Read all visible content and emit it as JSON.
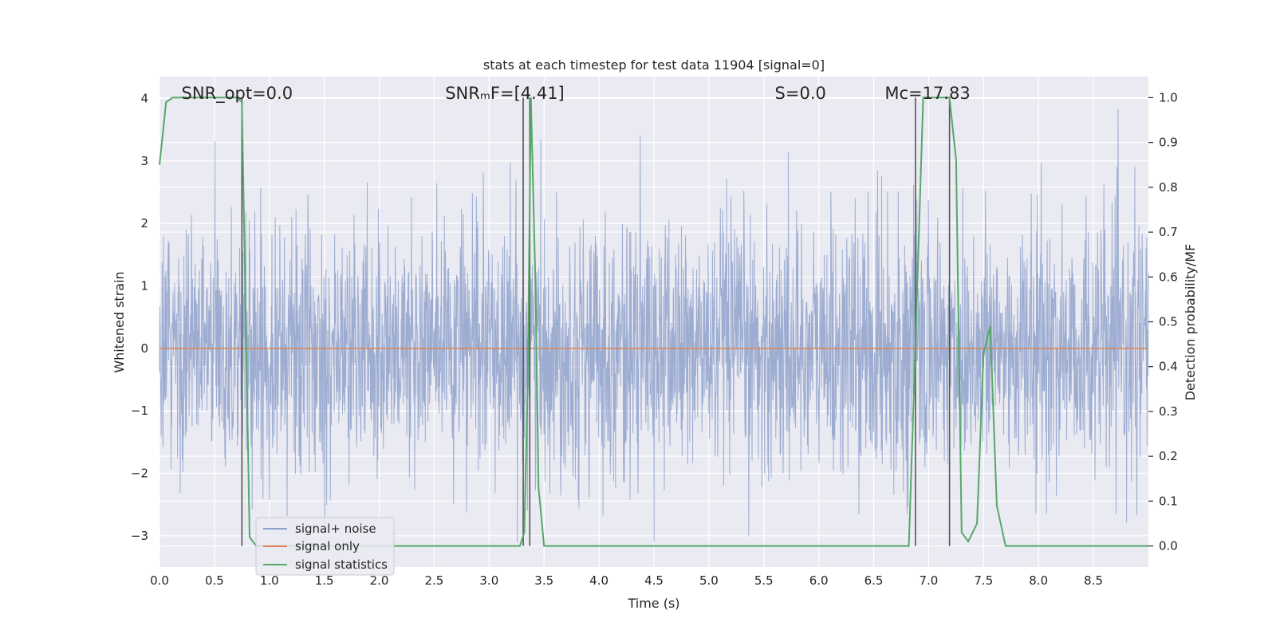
{
  "chart_data": {
    "type": "line",
    "title": "stats at each timestep for test data 11904 [signal=0]",
    "xlabel": "Time (s)",
    "ylabel": "Whitened strain",
    "y2label": "Detection probability/MF",
    "xlim": [
      0.0,
      9.0
    ],
    "ylim": [
      -3.5,
      4.35
    ],
    "y2lim": [
      -0.047,
      1.047
    ],
    "xticks": [
      0.0,
      0.5,
      1.0,
      1.5,
      2.0,
      2.5,
      3.0,
      3.5,
      4.0,
      4.5,
      5.0,
      5.5,
      6.0,
      6.5,
      7.0,
      7.5,
      8.0,
      8.5
    ],
    "xtick_labels": [
      "0.0",
      "0.5",
      "1.0",
      "1.5",
      "2.0",
      "2.5",
      "3.0",
      "3.5",
      "4.0",
      "4.5",
      "5.0",
      "5.5",
      "6.0",
      "6.5",
      "7.0",
      "7.5",
      "8.0",
      "8.5"
    ],
    "yticks": [
      4,
      3,
      2,
      1,
      0,
      -1,
      -2,
      -3
    ],
    "ytick_labels": [
      "4",
      "3",
      "2",
      "1",
      "0",
      "−1",
      "−2",
      "−3"
    ],
    "y2ticks": [
      1.0,
      0.9,
      0.8,
      0.7,
      0.6,
      0.5,
      0.4,
      0.3,
      0.2,
      0.1,
      0.0
    ],
    "y2tick_labels": [
      "1.0",
      "0.9",
      "0.8",
      "0.7",
      "0.6",
      "0.5",
      "0.4",
      "0.3",
      "0.2",
      "0.1",
      "0.0"
    ],
    "grid": true,
    "legend_position": "lower-left",
    "annotations": [
      {
        "text": "SNR_opt=0.0",
        "x": 0.2
      },
      {
        "text": "SNRₘF=[4.41]",
        "x": 2.6
      },
      {
        "text": "S=0.0",
        "x": 5.6
      },
      {
        "text": "Mᴄ=17.83",
        "x": 6.6
      }
    ],
    "vertical_markers": [
      0.75,
      3.31,
      3.37,
      6.88,
      7.19
    ],
    "series": [
      {
        "name": "signal+ noise",
        "color": "#8fa2cb",
        "axis": "left",
        "noise": {
          "duration": 9.0,
          "samples": 3000,
          "std": 1.0,
          "max": 4.0,
          "min": -3.1
        }
      },
      {
        "name": "signal only",
        "color": "#dd8452",
        "axis": "left",
        "x": [
          0.0,
          9.0
        ],
        "y": [
          0.0,
          0.0
        ]
      },
      {
        "name": "signal statistics",
        "color": "#55a868",
        "axis": "right",
        "x": [
          0.0,
          0.06,
          0.12,
          0.7,
          0.75,
          0.82,
          0.88,
          3.28,
          3.32,
          3.35,
          3.38,
          3.42,
          3.45,
          3.5,
          6.82,
          6.88,
          6.95,
          7.19,
          7.25,
          7.3,
          7.36,
          7.44,
          7.5,
          7.56,
          7.62,
          7.7,
          7.76,
          9.0
        ],
        "y": [
          0.85,
          0.99,
          1.0,
          1.0,
          0.99,
          0.02,
          0.0,
          0.0,
          0.03,
          0.35,
          1.0,
          0.6,
          0.13,
          0.0,
          0.0,
          0.45,
          1.0,
          1.0,
          0.86,
          0.03,
          0.01,
          0.05,
          0.43,
          0.49,
          0.09,
          0.0,
          0.0,
          0.0
        ]
      }
    ]
  }
}
